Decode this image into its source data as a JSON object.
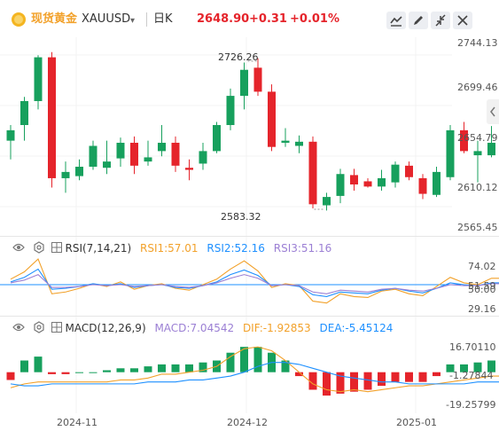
{
  "header": {
    "symbol_name": "现货黄金",
    "symbol_code": "XAUUSD",
    "dropdown_glyph": "▾",
    "period": "日K",
    "last": "2648.90",
    "change": "+0.31",
    "change_pct": "+0.01%"
  },
  "colors": {
    "up": "#17a05d",
    "down": "#e5242b",
    "accent": "#f2a12a",
    "blue_line": "#1e90ff"
  },
  "toolbar": {
    "icons": [
      "line-chart-icon",
      "pencil-icon",
      "collapse-icon",
      "close-icon"
    ]
  },
  "chart_data": [
    {
      "type": "candlestick",
      "yaxis_ticks": [
        "2744.13",
        "2699.46",
        "2654.79",
        "2610.12",
        "2565.45"
      ],
      "ylim": [
        2565.45,
        2744.13
      ],
      "xaxis_ticks": [
        "2024-11",
        "2024-12",
        "2025-01"
      ],
      "annotations": {
        "high": "2726.26",
        "low": "2583.32"
      },
      "candles": [
        [
          2650,
          2665,
          2632,
          2660
        ],
        [
          2665,
          2692,
          2650,
          2688
        ],
        [
          2688,
          2732,
          2680,
          2730
        ],
        [
          2730,
          2735,
          2605,
          2614
        ],
        [
          2614,
          2630,
          2600,
          2620
        ],
        [
          2616,
          2632,
          2612,
          2625
        ],
        [
          2625,
          2650,
          2622,
          2645
        ],
        [
          2624,
          2650,
          2618,
          2630
        ],
        [
          2633,
          2653,
          2625,
          2648
        ],
        [
          2648,
          2654,
          2618,
          2626
        ],
        [
          2630,
          2650,
          2626,
          2634
        ],
        [
          2640,
          2665,
          2635,
          2648
        ],
        [
          2648,
          2654,
          2620,
          2626
        ],
        [
          2624,
          2632,
          2612,
          2622
        ],
        [
          2628,
          2648,
          2622,
          2640
        ],
        [
          2640,
          2668,
          2638,
          2665
        ],
        [
          2665,
          2700,
          2660,
          2693
        ],
        [
          2693,
          2725,
          2680,
          2718
        ],
        [
          2720,
          2729,
          2693,
          2697
        ],
        [
          2697,
          2704,
          2640,
          2644
        ],
        [
          2648,
          2662,
          2644,
          2650
        ],
        [
          2645,
          2655,
          2638,
          2649
        ],
        [
          2649,
          2654,
          2585,
          2589
        ],
        [
          2588,
          2600,
          2583,
          2596
        ],
        [
          2597,
          2623,
          2590,
          2618
        ],
        [
          2617,
          2623,
          2602,
          2608
        ],
        [
          2611,
          2614,
          2605,
          2606
        ],
        [
          2606,
          2622,
          2602,
          2614
        ],
        [
          2610,
          2630,
          2605,
          2627
        ],
        [
          2626,
          2630,
          2612,
          2615
        ],
        [
          2614,
          2618,
          2594,
          2599
        ],
        [
          2598,
          2625,
          2596,
          2620
        ],
        [
          2615,
          2665,
          2612,
          2660
        ],
        [
          2660,
          2668,
          2638,
          2640
        ],
        [
          2636,
          2650,
          2610,
          2640
        ],
        [
          2636,
          2664,
          2634,
          2648
        ],
        [
          2649,
          2650,
          2647,
          2649
        ]
      ]
    },
    {
      "type": "line",
      "title": "RSI(7,14,21)",
      "yaxis_ticks": [
        "74.02",
        "51.59",
        "50.00",
        "29.16"
      ],
      "series": [
        {
          "name": "RSI1",
          "value": "57.01",
          "color": "#f2a12a",
          "values": [
            56,
            64,
            78,
            40,
            42,
            46,
            51,
            48,
            53,
            45,
            49,
            51,
            46,
            44,
            50,
            56,
            67,
            76,
            65,
            47,
            51,
            49,
            32,
            30,
            40,
            37,
            36,
            43,
            45,
            40,
            38,
            48,
            58,
            52,
            50,
            57,
            57
          ]
        },
        {
          "name": "RSI2",
          "value": "52.16",
          "color": "#1e90ff",
          "values": [
            53,
            58,
            67,
            45,
            46,
            48,
            51,
            49,
            51,
            47,
            49,
            50,
            47,
            46,
            49,
            53,
            61,
            66,
            60,
            49,
            50,
            48,
            39,
            37,
            42,
            41,
            40,
            44,
            46,
            43,
            41,
            46,
            52,
            50,
            49,
            52,
            52
          ]
        },
        {
          "name": "RSI3",
          "value": "51.16",
          "color": "#9b7fd4",
          "values": [
            52,
            55,
            61,
            47,
            47,
            48,
            50,
            49,
            50,
            48,
            49,
            50,
            48,
            47,
            49,
            52,
            57,
            61,
            57,
            49,
            50,
            49,
            42,
            40,
            44,
            43,
            42,
            45,
            46,
            44,
            43,
            46,
            50,
            49,
            49,
            51,
            51
          ]
        }
      ]
    },
    {
      "type": "bar+line",
      "title": "MACD(12,26,9)",
      "yaxis_ticks": [
        "16.70110",
        "-1.27844",
        "-19.25799"
      ],
      "series": [
        {
          "name": "MACD",
          "value": "7.04542",
          "color": "#f2a12a",
          "values": [
            -4,
            6,
            8,
            -1,
            -1,
            0,
            0,
            1,
            2,
            2,
            3,
            4,
            4,
            4,
            5,
            6,
            10,
            13,
            13,
            10,
            6,
            -2,
            -9,
            -12,
            -11,
            -10,
            -9,
            -7,
            -5,
            -5,
            -5,
            -2,
            4,
            4,
            5,
            6,
            7
          ]
        },
        {
          "name": "DIF",
          "value": "-1.92853",
          "color": "#f2a12a",
          "values": [
            -8,
            -6,
            -5,
            -5,
            -5,
            -5,
            -5,
            -5,
            -4,
            -4,
            -3,
            -1,
            -1,
            0,
            1,
            3,
            8,
            12,
            13,
            11,
            6,
            0,
            -6,
            -9,
            -10,
            -9,
            -10,
            -9,
            -8,
            -7,
            -7,
            -6,
            -5,
            -4,
            -3,
            -2,
            -2
          ]
        },
        {
          "name": "DEA",
          "value": "-5.45124",
          "color": "#1e90ff",
          "values": [
            -6,
            -7,
            -7,
            -6,
            -6,
            -6,
            -6,
            -6,
            -6,
            -6,
            -5,
            -5,
            -5,
            -4,
            -4,
            -3,
            -2,
            0,
            3,
            5,
            5,
            4,
            2,
            0,
            -2,
            -3,
            -4,
            -5,
            -5,
            -6,
            -6,
            -6,
            -6,
            -6,
            -5,
            -5,
            -5
          ]
        }
      ]
    }
  ]
}
